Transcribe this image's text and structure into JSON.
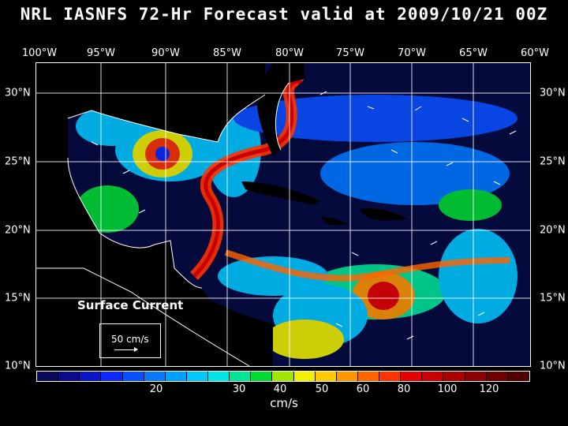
{
  "title": "NRL IASNFS  72-Hr Forecast valid at 2009/10/21 00Z",
  "lon_labels": [
    "100°W",
    "95°W",
    "90°W",
    "85°W",
    "80°W",
    "75°W",
    "70°W",
    "65°W",
    "60°W"
  ],
  "lat_labels": [
    "30°N",
    "25°N",
    "20°N",
    "15°N",
    "10°N"
  ],
  "surface_label": "Surface Current",
  "reference_vector": "50 cm/s",
  "colorbar": {
    "colors": [
      "#0a0a5a",
      "#0a0a8c",
      "#0a14c8",
      "#0a28ff",
      "#0a50ff",
      "#0a78ff",
      "#00a0ff",
      "#00c8ff",
      "#00e6e6",
      "#00e696",
      "#00dc32",
      "#a0e600",
      "#f0f000",
      "#ffc800",
      "#ff9600",
      "#ff6400",
      "#ff3200",
      "#e60000",
      "#c80000",
      "#aa0000",
      "#8c0000",
      "#6e0000",
      "#500000"
    ],
    "ticks": [
      "20",
      "30",
      "40",
      "50",
      "60",
      "80",
      "100",
      "120"
    ],
    "unit": "cm/s"
  }
}
